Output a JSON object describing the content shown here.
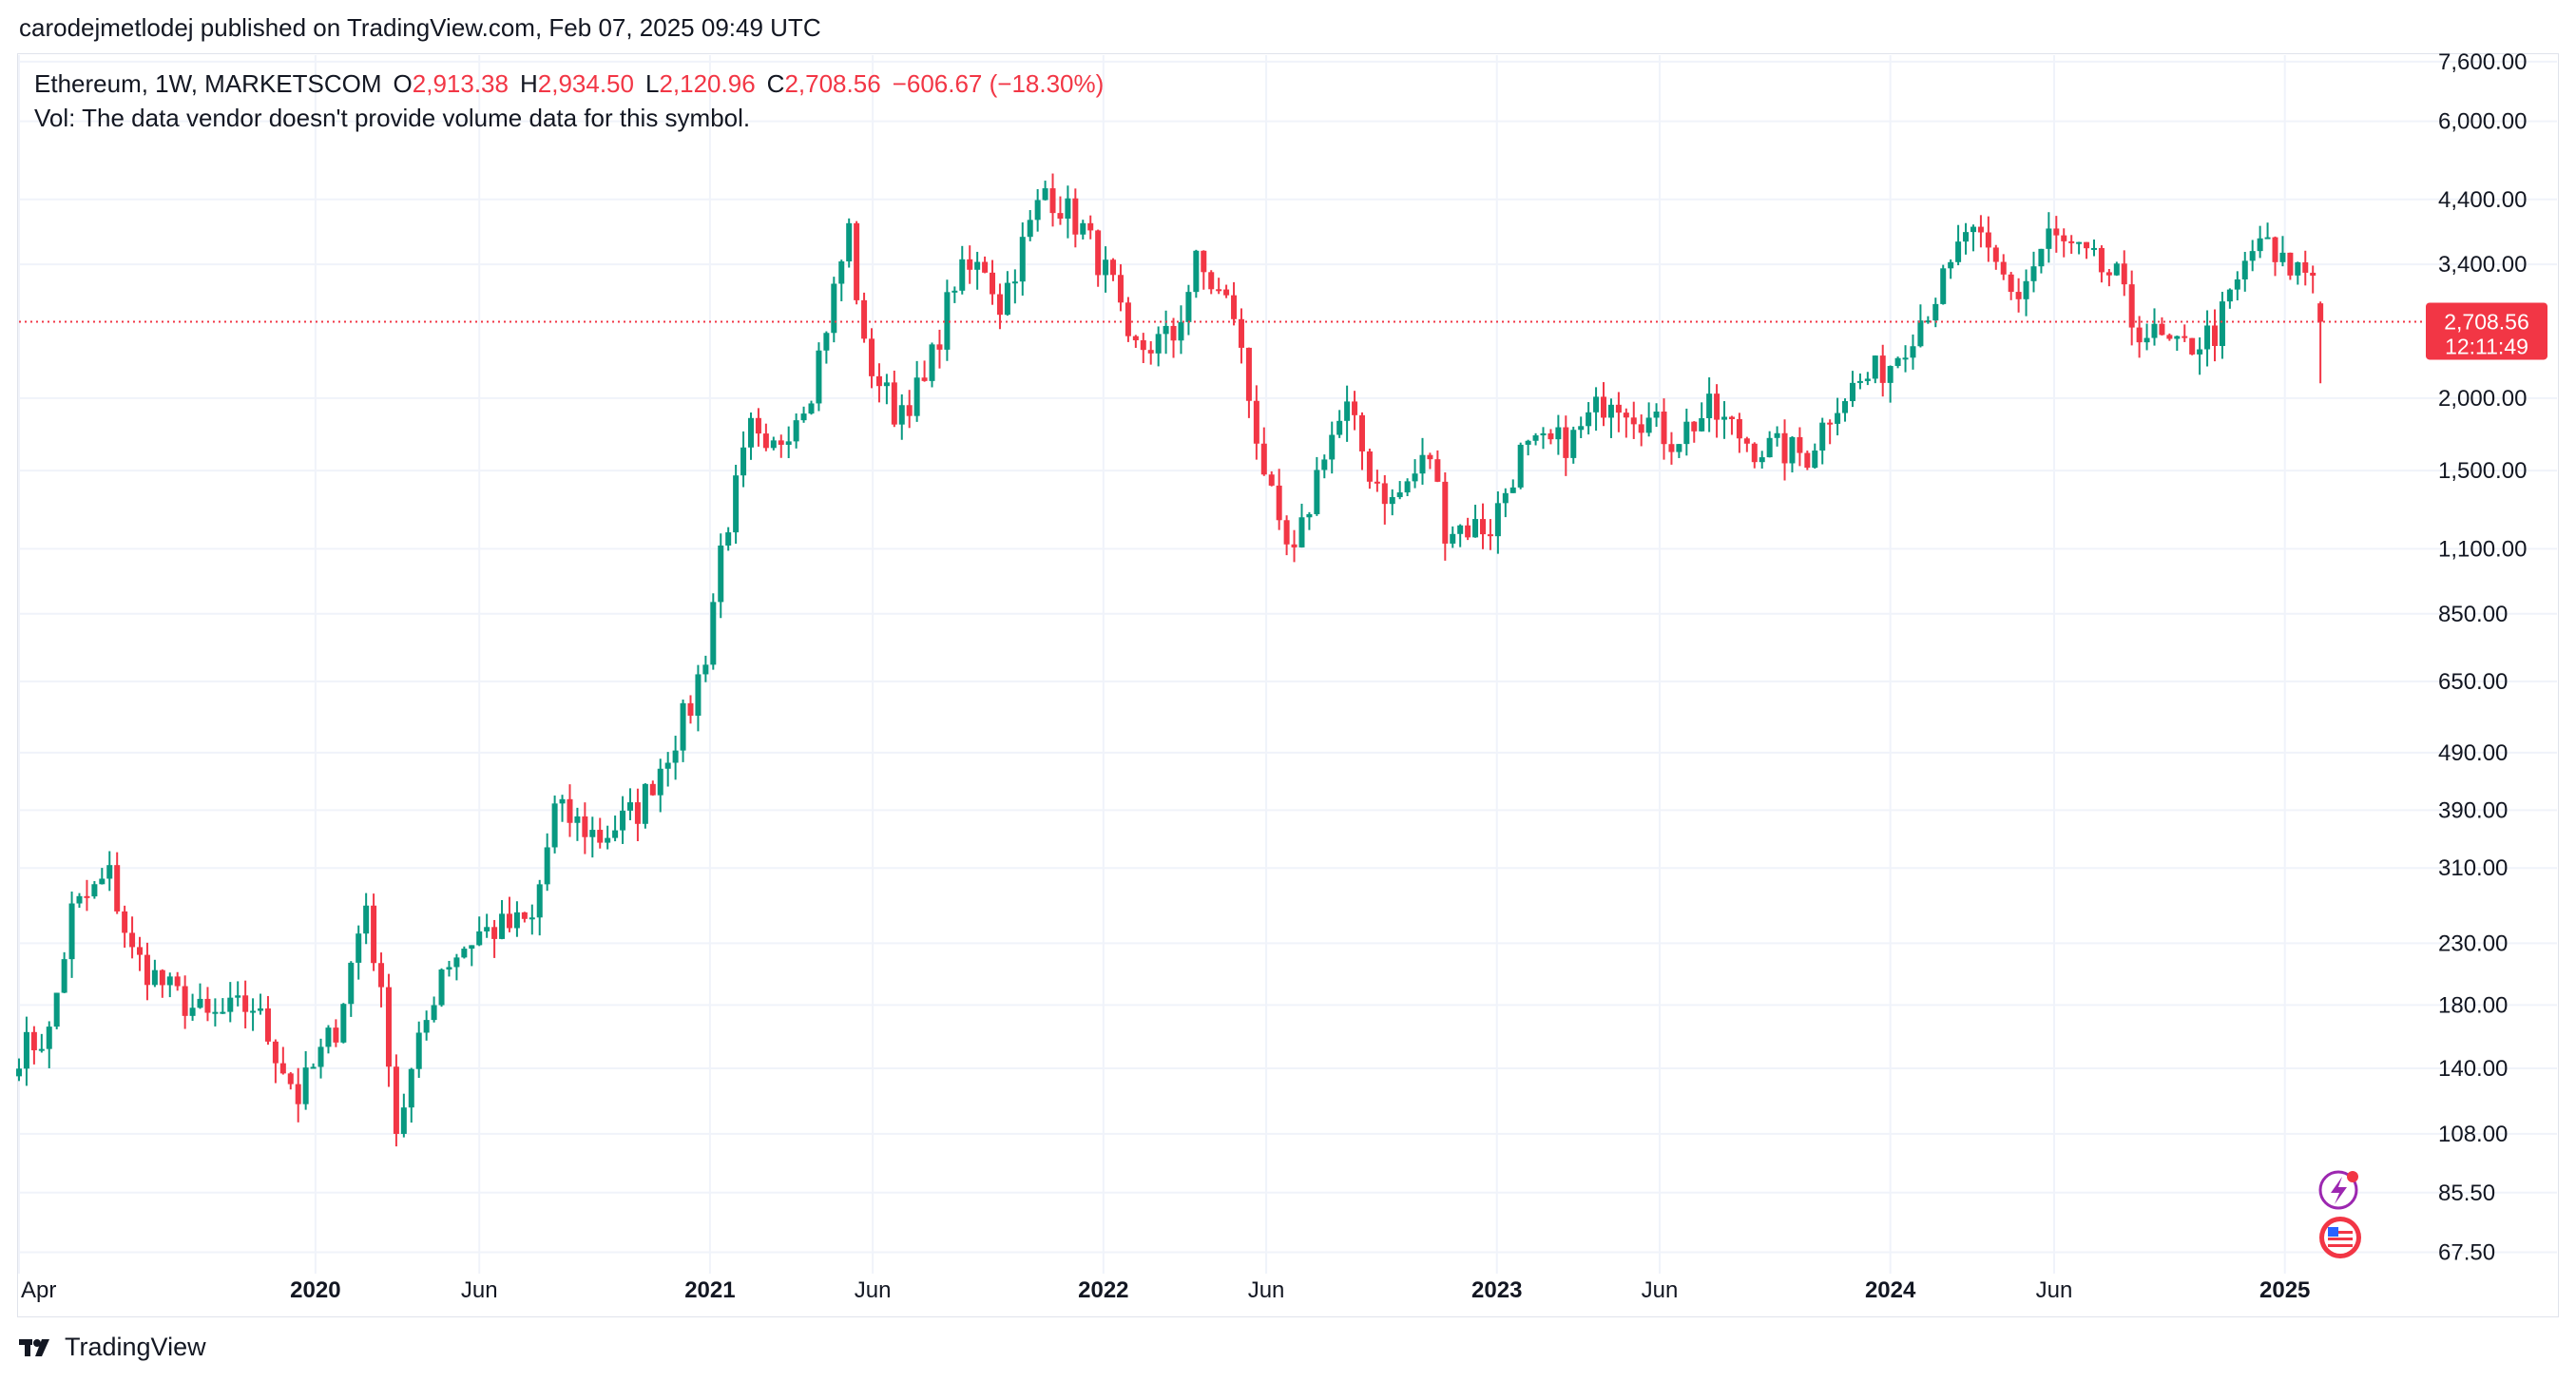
{
  "header": {
    "published_text": "carodejmetlodej published on TradingView.com, Feb 07, 2025 09:49 UTC"
  },
  "legend": {
    "symbol": "Ethereum, 1W, MARKETSCOM",
    "open_label": "O",
    "open": "2,913.38",
    "high_label": "H",
    "high": "2,934.50",
    "low_label": "L",
    "low": "2,120.96",
    "close_label": "C",
    "close": "2,708.56",
    "change": "−606.67 (−18.30%)",
    "volume_note": "Vol: The data vendor doesn't provide volume data for this symbol."
  },
  "price_badge": {
    "price": "2,708.56",
    "countdown": "12:11:49"
  },
  "branding": {
    "footer": "TradingView"
  },
  "colors": {
    "up": "#089981",
    "down": "#f23645",
    "grid": "#f0f3fa",
    "border": "#e0e3eb",
    "text": "#131722"
  },
  "chart_data": {
    "type": "candlestick",
    "y_scale": "log",
    "ylim": [
      62,
      7800
    ],
    "xlim": [
      "2019-04-01",
      "2025-05-10"
    ],
    "y_ticks": [
      {
        "value": 7600,
        "label": "7,600.00"
      },
      {
        "value": 6000,
        "label": "6,000.00"
      },
      {
        "value": 4400,
        "label": "4,400.00"
      },
      {
        "value": 3400,
        "label": "3,400.00"
      },
      {
        "value": 2000,
        "label": "2,000.00"
      },
      {
        "value": 1500,
        "label": "1,500.00"
      },
      {
        "value": 1100,
        "label": "1,100.00"
      },
      {
        "value": 850,
        "label": "850.00"
      },
      {
        "value": 650,
        "label": "650.00"
      },
      {
        "value": 490,
        "label": "490.00"
      },
      {
        "value": 390,
        "label": "390.00"
      },
      {
        "value": 310,
        "label": "310.00"
      },
      {
        "value": 230,
        "label": "230.00"
      },
      {
        "value": 180,
        "label": "180.00"
      },
      {
        "value": 140,
        "label": "140.00"
      },
      {
        "value": 108,
        "label": "108.00"
      },
      {
        "value": 85.5,
        "label": "85.50"
      },
      {
        "value": 67.5,
        "label": "67.50"
      }
    ],
    "x_ticks": [
      {
        "date": "2019-04-01",
        "label": "Apr",
        "major": false
      },
      {
        "date": "2020-01-01",
        "label": "2020",
        "major": true
      },
      {
        "date": "2020-06-01",
        "label": "Jun",
        "major": false
      },
      {
        "date": "2021-01-01",
        "label": "2021",
        "major": true
      },
      {
        "date": "2021-06-01",
        "label": "Jun",
        "major": false
      },
      {
        "date": "2022-01-01",
        "label": "2022",
        "major": true
      },
      {
        "date": "2022-06-01",
        "label": "Jun",
        "major": false
      },
      {
        "date": "2023-01-01",
        "label": "2023",
        "major": true
      },
      {
        "date": "2023-06-01",
        "label": "Jun",
        "major": false
      },
      {
        "date": "2024-01-01",
        "label": "2024",
        "major": true
      },
      {
        "date": "2024-06-01",
        "label": "Jun",
        "major": false
      },
      {
        "date": "2025-01-01",
        "label": "2025",
        "major": true
      }
    ],
    "current_price_line": 2708.56,
    "series": [
      {
        "name": "Ethereum",
        "anchors": [
          [
            "2019-04-01",
            150
          ],
          [
            "2019-04-29",
            160
          ],
          [
            "2019-05-20",
            260
          ],
          [
            "2019-06-24",
            300
          ],
          [
            "2019-07-15",
            220
          ],
          [
            "2019-08-19",
            190
          ],
          [
            "2019-09-23",
            170
          ],
          [
            "2019-11-04",
            180
          ],
          [
            "2019-12-16",
            125
          ],
          [
            "2020-01-20",
            165
          ],
          [
            "2020-02-17",
            270
          ],
          [
            "2020-03-09",
            150
          ],
          [
            "2020-03-16",
            110
          ],
          [
            "2020-04-27",
            210
          ],
          [
            "2020-06-01",
            240
          ],
          [
            "2020-07-20",
            250
          ],
          [
            "2020-08-10",
            390
          ],
          [
            "2020-09-21",
            350
          ],
          [
            "2020-10-26",
            390
          ],
          [
            "2020-12-14",
            590
          ],
          [
            "2020-12-28",
            730
          ],
          [
            "2021-01-11",
            1100
          ],
          [
            "2021-02-08",
            1750
          ],
          [
            "2021-02-22",
            1550
          ],
          [
            "2021-04-05",
            2100
          ],
          [
            "2021-05-10",
            3900
          ],
          [
            "2021-05-24",
            2400
          ],
          [
            "2021-06-21",
            1900
          ],
          [
            "2021-07-19",
            2100
          ],
          [
            "2021-08-16",
            3200
          ],
          [
            "2021-09-13",
            3400
          ],
          [
            "2021-09-27",
            2900
          ],
          [
            "2021-11-08",
            4600
          ],
          [
            "2021-12-13",
            3900
          ],
          [
            "2022-01-10",
            3100
          ],
          [
            "2022-01-24",
            2400
          ],
          [
            "2022-03-07",
            2550
          ],
          [
            "2022-03-28",
            3400
          ],
          [
            "2022-05-02",
            2800
          ],
          [
            "2022-05-16",
            2000
          ],
          [
            "2022-06-13",
            1150
          ],
          [
            "2022-06-27",
            1050
          ],
          [
            "2022-07-25",
            1650
          ],
          [
            "2022-08-15",
            1900
          ],
          [
            "2022-09-05",
            1500
          ],
          [
            "2022-09-26",
            1320
          ],
          [
            "2022-10-31",
            1600
          ],
          [
            "2022-11-14",
            1200
          ],
          [
            "2022-12-26",
            1200
          ],
          [
            "2023-01-23",
            1600
          ],
          [
            "2023-03-13",
            1700
          ],
          [
            "2023-04-17",
            2050
          ],
          [
            "2023-06-12",
            1700
          ],
          [
            "2023-07-17",
            1900
          ],
          [
            "2023-08-28",
            1650
          ],
          [
            "2023-10-16",
            1600
          ],
          [
            "2023-11-13",
            2000
          ],
          [
            "2024-01-01",
            2300
          ],
          [
            "2024-02-26",
            3300
          ],
          [
            "2024-03-11",
            3900
          ],
          [
            "2024-04-29",
            3000
          ],
          [
            "2024-05-27",
            3800
          ],
          [
            "2024-07-29",
            3200
          ],
          [
            "2024-08-12",
            2700
          ],
          [
            "2024-09-23",
            2400
          ],
          [
            "2024-10-28",
            2600
          ],
          [
            "2024-12-09",
            3800
          ],
          [
            "2024-12-23",
            3400
          ],
          [
            "2025-01-27",
            3300
          ],
          [
            "2025-02-03",
            2708.56
          ]
        ]
      }
    ]
  }
}
